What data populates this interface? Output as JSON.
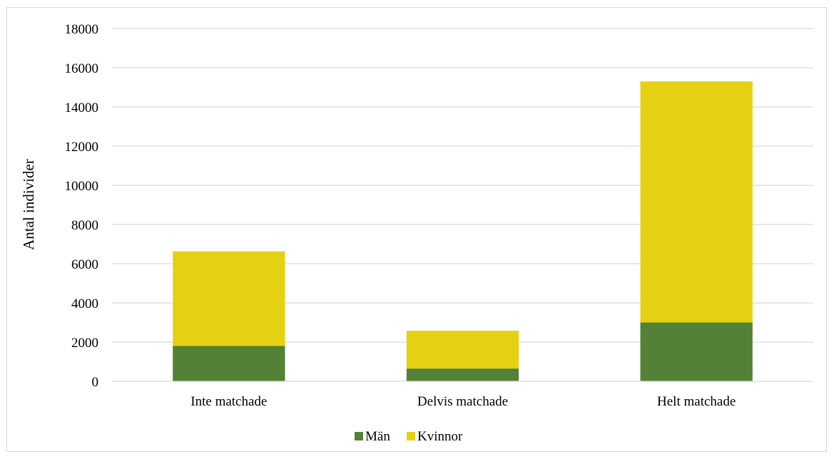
{
  "chart_data": {
    "type": "bar",
    "stacked": true,
    "categories": [
      "Inte matchade",
      "Delvis matchade",
      "Helt matchade"
    ],
    "series": [
      {
        "name": "Män",
        "values": [
          1800,
          650,
          3000
        ],
        "color": "#538135"
      },
      {
        "name": "Kvinnor",
        "values": [
          4830,
          1930,
          12300
        ],
        "color": "#e6d013"
      }
    ],
    "title": "",
    "xlabel": "",
    "ylabel": "Antal individer",
    "ylim": [
      0,
      18000
    ],
    "yticks": [
      0,
      2000,
      4000,
      6000,
      8000,
      10000,
      12000,
      14000,
      16000,
      18000
    ],
    "grid": true,
    "legend_position": "bottom-center",
    "gridline_color": "#d9d9d9"
  }
}
